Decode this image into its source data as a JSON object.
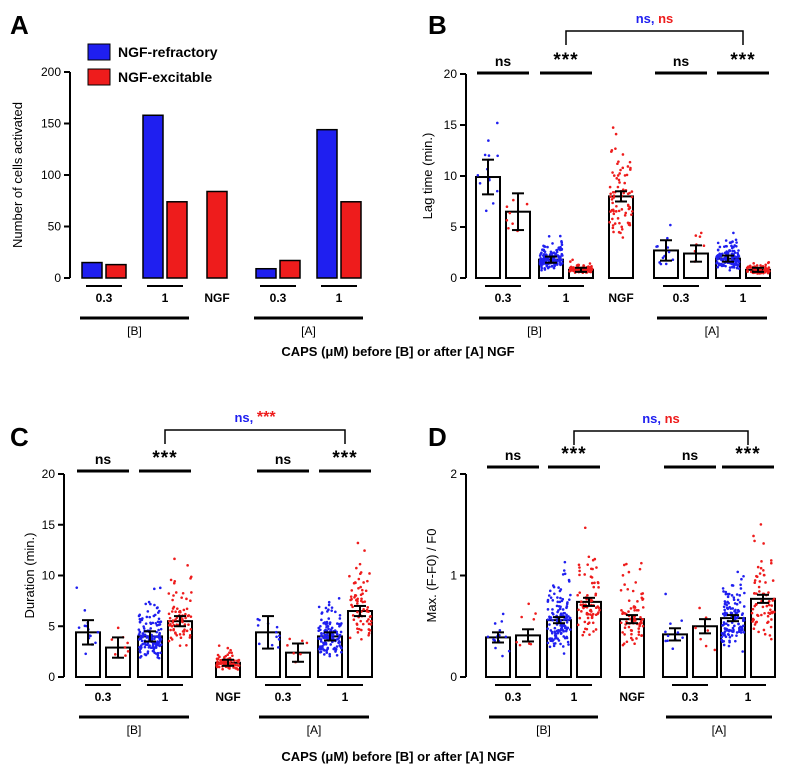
{
  "figure": {
    "x_title_top": "CAPS (μM) before [B] or after [A] NGF",
    "x_title_bottom": "CAPS (μM) before [B] or after [A] NGF"
  },
  "colors": {
    "refractory": "#1f1ff0",
    "excitable": "#ee1c1c"
  },
  "chart_data": [
    {
      "panel": "A",
      "type": "bar",
      "title": "",
      "ylabel": "Number of cells activated",
      "ylim": [
        0,
        200
      ],
      "yticks": [
        "0",
        "50",
        "100",
        "150",
        "200"
      ],
      "legend": [
        "NGF-refractory",
        "NGF-excitable"
      ],
      "legend_position": "top-left",
      "groups": [
        "0.3",
        "1",
        "NGF",
        "0.3",
        "1"
      ],
      "conditions": [
        "[B]",
        "[A]"
      ],
      "series": [
        {
          "name": "NGF-refractory",
          "values": [
            15,
            158,
            null,
            9,
            144
          ]
        },
        {
          "name": "NGF-excitable",
          "values": [
            13,
            74,
            84,
            17,
            74
          ]
        }
      ]
    },
    {
      "panel": "B",
      "type": "bar",
      "ylabel": "Lag time (min.)",
      "ylim": [
        0,
        20
      ],
      "yticks": [
        "0",
        "5",
        "10",
        "15",
        "20"
      ],
      "groups": [
        "0.3",
        "1",
        "NGF",
        "0.3",
        "1"
      ],
      "conditions": [
        "[B]",
        "[A]"
      ],
      "series": [
        {
          "name": "NGF-refractory",
          "values": [
            9.9,
            1.8,
            null,
            2.7,
            1.9
          ],
          "errors": [
            1.7,
            0.3,
            null,
            1.0,
            0.3
          ]
        },
        {
          "name": "NGF-excitable",
          "values": [
            6.5,
            0.8,
            8.0,
            2.4,
            0.8
          ],
          "errors": [
            1.8,
            0.2,
            0.5,
            0.8,
            0.2
          ]
        }
      ],
      "significance": [
        "ns",
        "***",
        "ns",
        "***"
      ],
      "bracket": [
        "ns",
        "ns"
      ]
    },
    {
      "panel": "C",
      "type": "bar",
      "ylabel": "Duration (min.)",
      "ylim": [
        0,
        20
      ],
      "yticks": [
        "0",
        "5",
        "10",
        "15",
        "20"
      ],
      "groups": [
        "0.3",
        "1",
        "NGF",
        "0.3",
        "1"
      ],
      "conditions": [
        "[B]",
        "[A]"
      ],
      "series": [
        {
          "name": "NGF-refractory",
          "values": [
            4.4,
            4.0,
            null,
            4.4,
            4.0
          ],
          "errors": [
            1.2,
            0.5,
            null,
            1.6,
            0.4
          ]
        },
        {
          "name": "NGF-excitable",
          "values": [
            2.9,
            5.5,
            1.4,
            2.4,
            6.5
          ],
          "errors": [
            1.0,
            0.5,
            0.3,
            0.9,
            0.5
          ]
        }
      ],
      "significance": [
        "ns",
        "***",
        "ns",
        "***"
      ],
      "bracket": [
        "ns",
        "***"
      ]
    },
    {
      "panel": "D",
      "type": "bar",
      "ylabel": "Max. (F-F0) / F0",
      "ylim": [
        0,
        2
      ],
      "yticks": [
        "0",
        "1",
        "2"
      ],
      "groups": [
        "0.3",
        "1",
        "NGF",
        "0.3",
        "1"
      ],
      "conditions": [
        "[B]",
        "[A]"
      ],
      "series": [
        {
          "name": "NGF-refractory",
          "values": [
            0.39,
            0.56,
            null,
            0.42,
            0.58
          ],
          "errors": [
            0.05,
            0.03,
            null,
            0.06,
            0.03
          ]
        },
        {
          "name": "NGF-excitable",
          "values": [
            0.41,
            0.74,
            0.57,
            0.5,
            0.77
          ],
          "errors": [
            0.06,
            0.04,
            0.04,
            0.07,
            0.04
          ]
        }
      ],
      "significance": [
        "ns",
        "***",
        "ns",
        "***"
      ],
      "bracket": [
        "ns",
        "ns"
      ]
    }
  ]
}
